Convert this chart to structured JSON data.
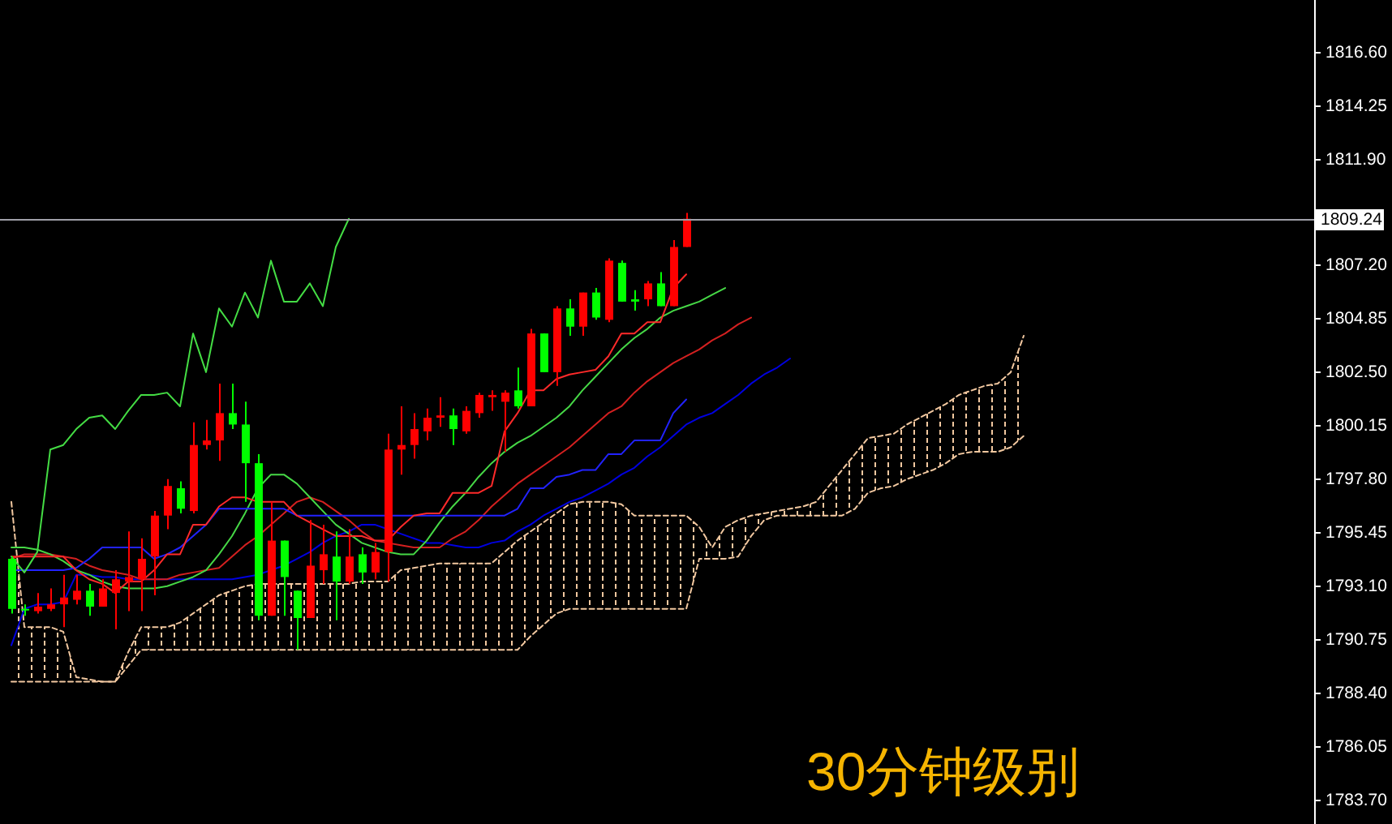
{
  "chart_data": {
    "type": "candlestick",
    "categories": [
      null,
      null,
      null,
      null,
      null,
      null,
      null,
      null,
      null,
      null,
      null,
      null,
      null,
      null,
      null,
      null,
      null,
      null,
      null,
      null,
      null,
      null,
      null,
      null,
      null,
      null,
      null,
      null,
      null,
      null,
      null,
      null,
      null,
      null,
      null,
      null,
      null,
      null,
      null,
      null,
      null,
      null,
      null,
      null,
      null,
      null,
      null,
      null,
      null,
      null,
      null,
      null,
      null,
      null,
      null,
      null,
      null,
      null,
      null,
      null,
      null,
      null,
      null,
      null,
      null,
      null,
      null,
      null,
      null,
      null,
      null,
      null,
      null,
      null,
      null,
      null,
      null,
      null,
      null
    ],
    "ohlc": [
      [
        1794.3,
        1794.4,
        1791.9,
        1792.1
      ],
      [
        1792.1,
        1792.3,
        1791.8,
        1792.1
      ],
      [
        1792.0,
        1792.8,
        1791.9,
        1792.2
      ],
      [
        1792.1,
        1793.0,
        1792.0,
        1792.3
      ],
      [
        1792.3,
        1793.6,
        1791.3,
        1792.6
      ],
      [
        1792.5,
        1793.6,
        1792.3,
        1792.9
      ],
      [
        1792.9,
        1793.2,
        1791.8,
        1792.2
      ],
      [
        1792.2,
        1793.4,
        1792.2,
        1793.0
      ],
      [
        1792.8,
        1793.8,
        1791.2,
        1793.4
      ],
      [
        1793.3,
        1795.5,
        1792.0,
        1793.5
      ],
      [
        1793.4,
        1795.2,
        1792.0,
        1794.3
      ],
      [
        1794.4,
        1796.4,
        1792.7,
        1796.2
      ],
      [
        1796.2,
        1797.8,
        1795.6,
        1797.5
      ],
      [
        1797.4,
        1797.7,
        1796.3,
        1796.5
      ],
      [
        1796.4,
        1800.3,
        1796.3,
        1799.3
      ],
      [
        1799.3,
        1800.4,
        1799.1,
        1799.5
      ],
      [
        1799.5,
        1802.0,
        1798.6,
        1800.7
      ],
      [
        1800.7,
        1802.0,
        1800.0,
        1800.2
      ],
      [
        1800.2,
        1801.2,
        1796.8,
        1798.5
      ],
      [
        1798.5,
        1798.9,
        1791.6,
        1791.8
      ],
      [
        1791.8,
        1796.8,
        1791.8,
        1795.1
      ],
      [
        1795.1,
        1795.1,
        1791.8,
        1793.5
      ],
      [
        1792.9,
        1792.9,
        1790.3,
        1791.7
      ],
      [
        1791.7,
        1796.0,
        1791.7,
        1794.0
      ],
      [
        1793.8,
        1795.8,
        1793.2,
        1794.5
      ],
      [
        1794.4,
        1795.5,
        1791.6,
        1793.3
      ],
      [
        1793.3,
        1795.6,
        1793.2,
        1794.4
      ],
      [
        1794.5,
        1794.8,
        1793.2,
        1793.7
      ],
      [
        1793.7,
        1795.0,
        1793.4,
        1794.6
      ],
      [
        1794.6,
        1799.8,
        1793.3,
        1799.1
      ],
      [
        1799.1,
        1801.0,
        1798.0,
        1799.3
      ],
      [
        1799.3,
        1800.7,
        1798.7,
        1800.0
      ],
      [
        1799.9,
        1800.9,
        1799.5,
        1800.5
      ],
      [
        1800.5,
        1801.4,
        1800.1,
        1800.6
      ],
      [
        1800.6,
        1800.9,
        1799.3,
        1800.0
      ],
      [
        1799.9,
        1801.0,
        1799.8,
        1800.8
      ],
      [
        1800.7,
        1801.6,
        1800.5,
        1801.5
      ],
      [
        1801.4,
        1801.7,
        1800.8,
        1801.5
      ],
      [
        1801.2,
        1801.7,
        1799.0,
        1801.6
      ],
      [
        1801.7,
        1802.7,
        1800.9,
        1801.0
      ],
      [
        1801.0,
        1804.4,
        1801.0,
        1804.2
      ],
      [
        1804.2,
        1804.2,
        1802.5,
        1802.5
      ],
      [
        1802.5,
        1805.4,
        1801.9,
        1805.3
      ],
      [
        1805.3,
        1805.7,
        1804.1,
        1804.5
      ],
      [
        1804.5,
        1806.0,
        1804.1,
        1806.0
      ],
      [
        1806.0,
        1806.2,
        1804.8,
        1804.9
      ],
      [
        1804.8,
        1807.5,
        1804.7,
        1807.4
      ],
      [
        1807.3,
        1807.4,
        1805.6,
        1805.6
      ],
      [
        1805.7,
        1806.1,
        1805.2,
        1805.6
      ],
      [
        1805.7,
        1806.5,
        1805.4,
        1806.4
      ],
      [
        1806.4,
        1806.9,
        1805.4,
        1805.4
      ],
      [
        1805.4,
        1808.3,
        1805.4,
        1808.0
      ],
      [
        1808.0,
        1809.5,
        1808.0,
        1809.24
      ],
      null,
      null,
      null,
      null,
      null,
      null,
      null,
      null,
      null,
      null,
      null,
      null,
      null,
      null,
      null,
      null,
      null,
      null,
      null,
      null,
      null,
      null,
      null,
      null,
      null,
      null
    ],
    "colors": [
      "#00ff00",
      "#00ff00",
      "#ff0000",
      "#ff0000",
      "#ff0000",
      "#ff0000",
      "#00ff00",
      "#ff0000",
      "#ff0000",
      "#ff0000",
      "#ff0000",
      "#ff0000",
      "#ff0000",
      "#00ff00",
      "#ff0000",
      "#ff0000",
      "#ff0000",
      "#00ff00",
      "#00ff00",
      "#00ff00",
      "#ff0000",
      "#00ff00",
      "#00ff00",
      "#ff0000",
      "#ff0000",
      "#00ff00",
      "#ff0000",
      "#00ff00",
      "#ff0000",
      "#ff0000",
      "#ff0000",
      "#ff0000",
      "#ff0000",
      "#ff0000",
      "#00ff00",
      "#ff0000",
      "#ff0000",
      "#ff0000",
      "#ff0000",
      "#00ff00",
      "#ff0000",
      "#00ff00",
      "#ff0000",
      "#00ff00",
      "#ff0000",
      "#00ff00",
      "#ff0000",
      "#00ff00",
      "#00ff00",
      "#ff0000",
      "#00ff00",
      "#ff0000",
      "#ff0000",
      null,
      null,
      null,
      null,
      null,
      null,
      null,
      null,
      null,
      null,
      null,
      null,
      null,
      null,
      null,
      null,
      null,
      null,
      null,
      null,
      null,
      null,
      null,
      null,
      null,
      null
    ],
    "series": [
      {
        "type": "line",
        "color": "#f2c8a0",
        "line_style": "dashed",
        "values": [
          1796.8,
          1791.3,
          1791.3,
          1791.3,
          1791.1,
          1789.1,
          1789.0,
          1788.9,
          1788.9,
          1790.2,
          1791.3,
          1791.3,
          1791.3,
          1791.5,
          1791.9,
          1792.3,
          1792.7,
          1792.9,
          1793.1,
          1793.2,
          1793.2,
          1793.2,
          1793.2,
          1793.2,
          1793.2,
          1793.2,
          1793.2,
          1793.3,
          1793.3,
          1793.3,
          1793.8,
          1793.9,
          1794.0,
          1794.1,
          1794.1,
          1794.1,
          1794.1,
          1794.1,
          1794.6,
          1795.1,
          1795.5,
          1795.9,
          1796.3,
          1796.7,
          1796.8,
          1796.8,
          1796.8,
          1796.7,
          1796.2,
          1796.2,
          1796.2,
          1796.2,
          1796.2,
          1795.7,
          1794.8,
          1795.7,
          1796.0,
          1796.2,
          1796.3,
          1796.4,
          1796.5,
          1796.6,
          1796.8,
          1797.5,
          1798.2,
          1798.9,
          1799.6,
          1799.7,
          1799.8,
          1800.2,
          1800.5,
          1800.8,
          1801.1,
          1801.5,
          1801.7,
          1801.9,
          1802.0,
          1802.5,
          1804.1
        ],
        "lower": [
          1788.9,
          1788.9,
          1788.9,
          1788.9,
          1788.9,
          1788.9,
          1788.9,
          1788.9,
          1788.9,
          1789.6,
          1790.3,
          1790.3,
          1790.3,
          1790.3,
          1790.3,
          1790.3,
          1790.3,
          1790.3,
          1790.3,
          1790.3,
          1790.3,
          1790.3,
          1790.3,
          1790.3,
          1790.3,
          1790.3,
          1790.3,
          1790.3,
          1790.3,
          1790.3,
          1790.3,
          1790.3,
          1790.3,
          1790.3,
          1790.3,
          1790.3,
          1790.3,
          1790.3,
          1790.3,
          1790.3,
          1790.9,
          1791.4,
          1791.9,
          1792.1,
          1792.1,
          1792.1,
          1792.1,
          1792.1,
          1792.1,
          1792.1,
          1792.1,
          1792.1,
          1792.1,
          1794.3,
          1794.3,
          1794.3,
          1794.4,
          1795.3,
          1796.0,
          1796.2,
          1796.2,
          1796.2,
          1796.2,
          1796.2,
          1796.2,
          1796.5,
          1797.2,
          1797.4,
          1797.5,
          1797.8,
          1798.0,
          1798.2,
          1798.5,
          1798.9,
          1799.0,
          1799.0,
          1799.0,
          1799.2,
          1799.7
        ],
        "upper": [
          1796.8,
          1791.3,
          1791.3,
          1791.3,
          1791.1,
          1789.1,
          1789.0,
          1788.9,
          1788.9,
          1790.2,
          1791.3,
          1791.3,
          1791.3,
          1791.5,
          1791.9,
          1792.3,
          1792.7,
          1792.9,
          1793.1,
          1793.2,
          1793.2,
          1793.2,
          1793.2,
          1793.2,
          1793.2,
          1793.2,
          1793.2,
          1793.3,
          1793.3,
          1793.3,
          1793.8,
          1793.9,
          1794.0,
          1794.1,
          1794.1,
          1794.1,
          1794.1,
          1794.1,
          1794.6,
          1795.1,
          1795.5,
          1795.9,
          1796.3,
          1796.7,
          1796.8,
          1796.8,
          1796.8,
          1796.7,
          1796.2,
          1796.2,
          1796.2,
          1796.2,
          1796.2,
          1795.7,
          1794.8,
          1795.7,
          1796.0,
          1796.2,
          1796.3,
          1796.4,
          1796.5,
          1796.6,
          1796.8,
          1797.5,
          1798.2,
          1798.9,
          1799.6,
          1799.7,
          1799.8,
          1800.2,
          1800.5,
          1800.8,
          1801.1,
          1801.5,
          1801.7,
          1801.9,
          1802.0,
          1802.5,
          1804.1
        ]
      },
      {
        "type": "line",
        "color": "#f2c8a0",
        "line_style": "dashed",
        "values": [
          1788.9,
          1788.9,
          1788.9,
          1788.9,
          1788.9,
          1788.9,
          1788.9,
          1788.9,
          1788.9,
          1789.6,
          1790.3,
          1790.3,
          1790.3,
          1790.3,
          1790.3,
          1790.3,
          1790.3,
          1790.3,
          1790.3,
          1790.3,
          1790.3,
          1790.3,
          1790.3,
          1790.3,
          1790.3,
          1790.3,
          1790.3,
          1790.3,
          1790.3,
          1790.3,
          1790.3,
          1790.3,
          1790.3,
          1790.3,
          1790.3,
          1790.3,
          1790.3,
          1790.3,
          1790.3,
          1790.3,
          1790.9,
          1791.4,
          1791.9,
          1792.1,
          1792.1,
          1792.1,
          1792.1,
          1792.1,
          1792.1,
          1792.1,
          1792.1,
          1792.1,
          1792.1,
          1794.3,
          1794.3,
          1794.3,
          1794.4,
          1795.3,
          1796.0,
          1796.2,
          1796.2,
          1796.2,
          1796.2,
          1796.2,
          1796.2,
          1796.5,
          1797.2,
          1797.4,
          1797.5,
          1797.8,
          1798.0,
          1798.2,
          1798.5,
          1798.9,
          1799.0,
          1799.0,
          1799.0,
          1799.2,
          1799.7
        ]
      },
      {
        "type": "line",
        "color": "#0000e0",
        "values": [
          1790.5,
          1792.1,
          1792.3,
          1792.3,
          1792.4,
          1793.6,
          1793.6,
          1793.5,
          1793.5,
          1793.4,
          1793.4,
          1793.4,
          1793.4,
          1793.4,
          1793.4,
          1793.4,
          1793.4,
          1793.4,
          1793.5,
          1793.6,
          1793.8,
          1794.0,
          1794.3,
          1794.6,
          1795.0,
          1795.3,
          1795.5,
          1795.8,
          1795.8,
          1795.6,
          1795.4,
          1795.2,
          1795.0,
          1795.0,
          1794.9,
          1794.8,
          1794.8,
          1795.0,
          1795.1,
          1795.5,
          1795.8,
          1796.2,
          1796.5,
          1796.8,
          1797.0,
          1797.3,
          1797.6,
          1798.0,
          1798.3,
          1798.8,
          1799.2,
          1799.7,
          1800.2,
          1800.5,
          1800.7,
          1801.1,
          1801.5,
          1802.0,
          1802.4,
          1802.7,
          1803.1,
          null,
          null,
          null,
          null,
          null,
          null,
          null,
          null,
          null,
          null,
          null,
          null,
          null,
          null,
          null,
          null,
          null,
          null
        ]
      },
      {
        "type": "line",
        "color": "#d42020",
        "values": [
          1794.3,
          1794.5,
          1794.5,
          1794.5,
          1794.4,
          1794.3,
          1794.0,
          1793.8,
          1793.7,
          1793.6,
          1793.4,
          1793.4,
          1793.4,
          1793.6,
          1793.7,
          1793.8,
          1793.9,
          1794.4,
          1794.9,
          1795.3,
          1795.8,
          1796.3,
          1796.8,
          1797.0,
          1796.8,
          1796.4,
          1796.0,
          1795.5,
          1795.1,
          1795.0,
          1794.9,
          1794.8,
          1794.8,
          1794.8,
          1795.2,
          1795.5,
          1796.0,
          1796.6,
          1797.1,
          1797.6,
          1798.0,
          1798.4,
          1798.8,
          1799.2,
          1799.7,
          1800.2,
          1800.7,
          1801.0,
          1801.6,
          1802.1,
          1802.5,
          1802.9,
          1803.2,
          1803.5,
          1803.9,
          1804.2,
          1804.6,
          1804.9,
          null,
          null,
          null,
          null,
          null,
          null,
          null,
          null,
          null,
          null,
          null,
          null,
          null,
          null,
          null,
          null,
          null,
          null,
          null,
          null,
          null
        ]
      },
      {
        "type": "line",
        "color": "#46d846",
        "values": [
          1794.8,
          1794.8,
          1794.7,
          1794.5,
          1794.2,
          1793.8,
          1793.6,
          1793.3,
          1793.1,
          1793.0,
          1793.0,
          1793.0,
          1793.1,
          1793.3,
          1793.5,
          1793.8,
          1794.5,
          1795.3,
          1796.3,
          1797.4,
          1798.0,
          1798.0,
          1797.6,
          1797.0,
          1796.4,
          1795.8,
          1795.4,
          1795.0,
          1794.8,
          1794.6,
          1794.5,
          1794.5,
          1795.1,
          1795.9,
          1796.6,
          1797.2,
          1797.9,
          1798.5,
          1799.0,
          1799.4,
          1799.7,
          1800.1,
          1800.5,
          1801.0,
          1801.7,
          1802.3,
          1802.9,
          1803.5,
          1804.0,
          1804.4,
          1804.9,
          1805.2,
          1805.4,
          1805.6,
          1805.9,
          1806.2,
          null,
          null,
          null,
          null,
          null,
          null,
          null,
          null,
          null,
          null,
          null,
          null,
          null,
          null,
          null,
          null,
          null,
          null,
          null,
          null,
          null,
          null,
          null
        ]
      },
      {
        "type": "line",
        "color": "#2222ff",
        "values": [
          1793.8,
          1793.8,
          1793.8,
          1793.8,
          1793.8,
          1793.9,
          1794.3,
          1794.8,
          1794.8,
          1794.8,
          1794.8,
          1794.3,
          1794.5,
          1794.8,
          1795.3,
          1795.8,
          1796.5,
          1796.5,
          1796.5,
          1796.5,
          1796.5,
          1796.5,
          1796.2,
          1796.2,
          1796.2,
          1796.2,
          1796.2,
          1796.2,
          1796.2,
          1796.2,
          1796.2,
          1796.2,
          1796.2,
          1796.2,
          1796.2,
          1796.2,
          1796.2,
          1796.2,
          1796.2,
          1796.5,
          1797.4,
          1797.4,
          1797.9,
          1798.0,
          1798.2,
          1798.2,
          1798.9,
          1798.9,
          1799.5,
          1799.5,
          1799.5,
          1800.7,
          1801.3,
          null,
          null,
          null,
          null,
          null,
          null,
          null,
          null,
          null,
          null,
          null,
          null,
          null,
          null,
          null,
          null,
          null,
          null,
          null,
          null,
          null,
          null,
          null,
          null,
          null,
          null
        ]
      },
      {
        "type": "line",
        "color": "#ff2a2a",
        "values": [
          1794.4,
          1794.4,
          1794.4,
          1794.4,
          1794.4,
          1793.8,
          1793.4,
          1793.2,
          1792.8,
          1793.3,
          1793.3,
          1793.8,
          1794.5,
          1794.5,
          1795.8,
          1795.8,
          1796.6,
          1797.0,
          1797.0,
          1796.8,
          1796.8,
          1796.8,
          1796.2,
          1795.9,
          1795.6,
          1795.3,
          1795.3,
          1795.3,
          1795.1,
          1795.1,
          1795.7,
          1796.2,
          1796.3,
          1796.3,
          1797.2,
          1797.2,
          1797.2,
          1797.5,
          1799.9,
          1800.7,
          1801.7,
          1801.7,
          1802.2,
          1802.4,
          1802.5,
          1802.6,
          1803.2,
          1804.2,
          1804.2,
          1804.7,
          1804.7,
          1806.2,
          1806.8,
          null,
          null,
          null,
          null,
          null,
          null,
          null,
          null,
          null,
          null,
          null,
          null,
          null,
          null,
          null,
          null,
          null,
          null,
          null,
          null,
          null,
          null,
          null,
          null,
          null,
          null
        ]
      },
      {
        "type": "line",
        "color": "#44dd44",
        "values": [
          1794.4,
          1793.7,
          1794.6,
          1799.1,
          1799.3,
          1800.0,
          1800.5,
          1800.6,
          1800.0,
          1800.8,
          1801.5,
          1801.5,
          1801.6,
          1801.0,
          1804.2,
          1802.5,
          1805.3,
          1804.5,
          1806.0,
          1804.9,
          1807.4,
          1805.6,
          1805.6,
          1806.4,
          1805.4,
          1808.0,
          1809.24,
          null,
          null,
          null,
          null,
          null,
          null,
          null,
          null,
          null,
          null,
          null,
          null,
          null,
          null,
          null,
          null,
          null,
          null,
          null,
          null,
          null,
          null,
          null,
          null,
          null,
          null,
          null,
          null,
          null,
          null,
          null,
          null,
          null,
          null,
          null,
          null,
          null,
          null,
          null,
          null,
          null,
          null,
          null,
          null,
          null,
          null,
          null,
          null,
          null,
          null,
          null,
          null
        ]
      }
    ],
    "ylim": [
      1782.65,
      1818.85
    ],
    "yticks": [
      {
        "value": 1783.7,
        "label": "1783.70"
      },
      {
        "value": 1786.05,
        "label": "1786.05"
      },
      {
        "value": 1788.4,
        "label": "1788.40"
      },
      {
        "value": 1790.75,
        "label": "1790.75"
      },
      {
        "value": 1793.1,
        "label": "1793.10"
      },
      {
        "value": 1795.45,
        "label": "1795.45"
      },
      {
        "value": 1797.8,
        "label": "1797.80"
      },
      {
        "value": 1800.15,
        "label": "1800.15"
      },
      {
        "value": 1802.5,
        "label": "1802.50"
      },
      {
        "value": 1804.85,
        "label": "1804.85"
      },
      {
        "value": 1807.2,
        "label": "1807.20"
      },
      {
        "value": 1811.9,
        "label": "1811.90"
      },
      {
        "value": 1814.25,
        "label": "1814.25"
      },
      {
        "value": 1816.6,
        "label": "1816.60"
      }
    ],
    "ref_lines": [
      {
        "axis": "y",
        "value": 1809.24,
        "label": "1809.24",
        "color": "#a0a0a8"
      }
    ],
    "tick_labels": "y",
    "annotations": [
      "30分钟级别"
    ]
  }
}
